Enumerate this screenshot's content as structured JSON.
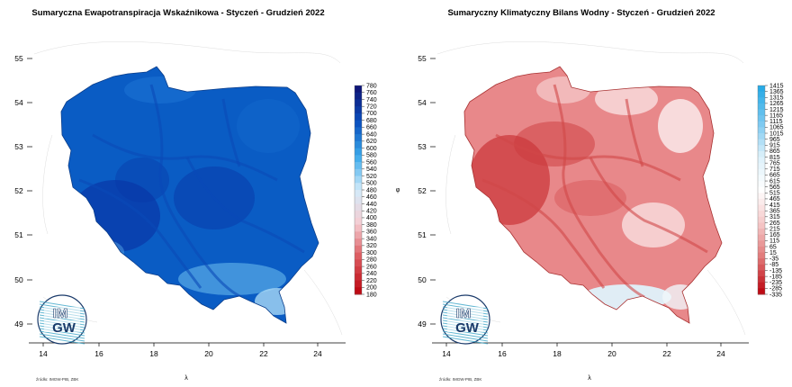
{
  "panels": [
    {
      "id": "et",
      "title": "Sumaryczna Ewapotranspiracja Wskaźnikowa - Styczeń - Grudzień 2022",
      "x_ticks": [
        "14",
        "16",
        "18",
        "20",
        "22",
        "24"
      ],
      "y_ticks": [
        "55",
        "54",
        "53",
        "52",
        "51",
        "50",
        "49"
      ],
      "x_label": "λ",
      "y_label": "",
      "legend_labels": [
        "780",
        "760",
        "740",
        "720",
        "700",
        "680",
        "660",
        "640",
        "620",
        "600",
        "580",
        "560",
        "540",
        "520",
        "500",
        "480",
        "460",
        "440",
        "420",
        "400",
        "380",
        "360",
        "340",
        "320",
        "300",
        "280",
        "260",
        "240",
        "220",
        "200",
        "180"
      ],
      "source": "źródło: IMGW-PIB, ZBK",
      "logo": {
        "top": "IM",
        "bottom": "GW"
      }
    },
    {
      "id": "kbw",
      "title": "Sumaryczny Klimatyczny Bilans Wodny - Styczeń - Grudzień 2022",
      "x_ticks": [
        "14",
        "16",
        "18",
        "20",
        "22",
        "24"
      ],
      "y_ticks": [
        "55",
        "54",
        "53",
        "52",
        "51",
        "50",
        "49"
      ],
      "x_label": "λ",
      "y_label": "φ",
      "legend_labels": [
        "1415",
        "1365",
        "1315",
        "1265",
        "1215",
        "1165",
        "1115",
        "1065",
        "1015",
        "965",
        "915",
        "865",
        "815",
        "765",
        "715",
        "665",
        "615",
        "565",
        "515",
        "465",
        "415",
        "365",
        "315",
        "265",
        "215",
        "165",
        "115",
        "65",
        "15",
        "-35",
        "-85",
        "-135",
        "-185",
        "-235",
        "-285",
        "-335"
      ],
      "source": "źródło: IMGW-PIB, ZBK",
      "logo": {
        "top": "IM",
        "bottom": "GW"
      }
    }
  ],
  "colors": {
    "et_map_main": "#0a5cc4",
    "et_map_dark": "#0838a8",
    "et_map_light": "#5fb0ea",
    "kbw_map_main": "#e8888a",
    "kbw_map_dark": "#cc3a3c",
    "kbw_map_light": "#f8dada"
  }
}
